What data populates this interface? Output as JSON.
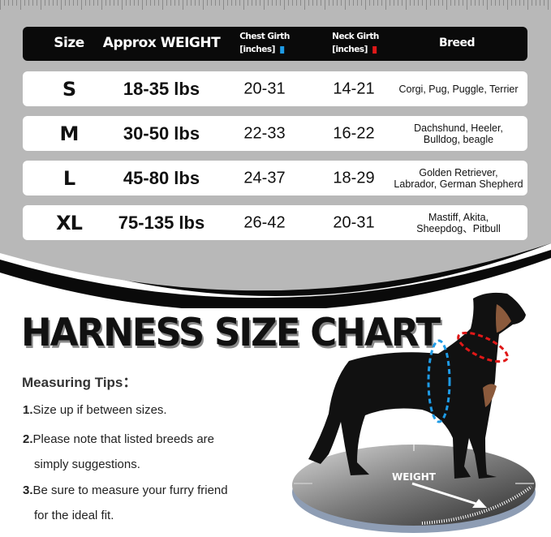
{
  "header": {
    "size": "Size",
    "weight": "Approx WEIGHT",
    "chest": "Chest Girth",
    "chest_unit": "[inches]",
    "neck": "Neck Girth",
    "neck_unit": "[inches]",
    "breed": "Breed",
    "chest_color": "#1e9be6",
    "neck_color": "#e01818"
  },
  "rows": [
    {
      "size": "S",
      "weight": "18-35 lbs",
      "chest": "20-31",
      "neck": "14-21",
      "breed": [
        "Corgi, Pug, Puggle, Terrier",
        ""
      ]
    },
    {
      "size": "M",
      "weight": "30-50 lbs",
      "chest": "22-33",
      "neck": "16-22",
      "breed": [
        "Dachshund, Heeler,",
        "Bulldog, beagle"
      ]
    },
    {
      "size": "L",
      "weight": "45-80 lbs",
      "chest": "24-37",
      "neck": "18-29",
      "breed": [
        "Golden Retriever,",
        "Labrador, German Shepherd"
      ]
    },
    {
      "size": "XL",
      "weight": "75-135 lbs",
      "chest": "26-42",
      "neck": "20-31",
      "breed": [
        "Mastiff, Akita,",
        "Sheepdog、Pitbull"
      ]
    }
  ],
  "title": "HARNESS SIZE CHART",
  "tips": {
    "heading": "Measuring Tips：",
    "items": [
      {
        "num": "1.",
        "text": "Size up if between sizes.",
        "cont": ""
      },
      {
        "num": "2.",
        "text": "Please note that listed breeds are",
        "cont": "simply suggestions."
      },
      {
        "num": "3.",
        "text": "Be sure to measure your furry friend",
        "cont": "for the ideal fit."
      }
    ]
  },
  "scale_label": "WEIGHT",
  "colors": {
    "panel": "#b8b8b8",
    "header": "#0a0a0a",
    "arc": "#0a0a0a"
  }
}
